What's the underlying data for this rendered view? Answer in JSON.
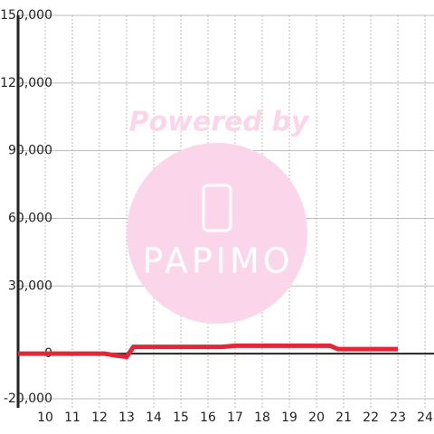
{
  "chart_data": {
    "type": "line",
    "annotations": [
      "Powered by",
      "PAPIMO"
    ],
    "x": [
      9,
      12.2,
      12.6,
      13,
      13.25,
      16.5,
      17,
      20.5,
      20.8,
      23
    ],
    "series": [
      {
        "name": null,
        "color": "#e52637",
        "values": [
          0,
          0,
          -800,
          -1400,
          3000,
          3000,
          3500,
          3500,
          2000,
          2000
        ]
      }
    ],
    "xlim": [
      9,
      24.33
    ],
    "xticks": [
      10,
      11,
      12,
      13,
      14,
      15,
      16,
      17,
      18,
      19,
      20,
      21,
      22,
      23,
      24
    ],
    "ylim": [
      -24000,
      150000
    ],
    "yticks": [
      {
        "value": -20000,
        "label": "-20,000"
      },
      0,
      {
        "value": 30000,
        "label": "30,000"
      },
      {
        "value": 60000,
        "label": "60,000"
      },
      {
        "value": 90000,
        "label": "90,000"
      },
      {
        "value": 120000,
        "label": "120,000"
      },
      {
        "value": 150000,
        "label": "150,000"
      }
    ],
    "grid": true
  }
}
